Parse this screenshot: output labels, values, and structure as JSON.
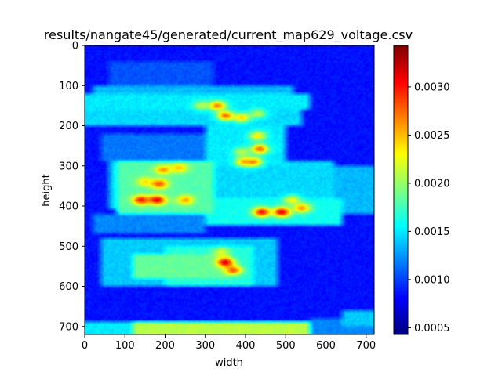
{
  "chart_data": {
    "type": "heatmap",
    "title": "results/nangate45/generated/current_map629_voltage.csv",
    "xlabel": "width",
    "ylabel": "height",
    "xlim": [
      0,
      720
    ],
    "ylim": [
      720,
      0
    ],
    "x_ticks": [
      0,
      100,
      200,
      300,
      400,
      500,
      600,
      700
    ],
    "y_ticks": [
      0,
      100,
      200,
      300,
      400,
      500,
      600,
      700
    ],
    "colorbar": {
      "min": 0.00043,
      "max": 0.00343,
      "ticks": [
        0.0005,
        0.001,
        0.0015,
        0.002,
        0.0025,
        0.003
      ],
      "tick_labels": [
        "0.0005",
        "0.0010",
        "0.0015",
        "0.0020",
        "0.0025",
        "0.0030"
      ],
      "colormap": "jet"
    },
    "background_level": 0.00085,
    "bands": [
      {
        "x": [
          0,
          720
        ],
        "y": [
          0,
          20
        ],
        "value": 0.00075
      },
      {
        "x": [
          60,
          320
        ],
        "y": [
          40,
          100
        ],
        "value": 0.00105
      },
      {
        "x": [
          20,
          520
        ],
        "y": [
          100,
          120
        ],
        "value": 0.00135
      },
      {
        "x": [
          0,
          560
        ],
        "y": [
          120,
          160
        ],
        "value": 0.0015
      },
      {
        "x": [
          0,
          540
        ],
        "y": [
          160,
          200
        ],
        "value": 0.00145
      },
      {
        "x": [
          300,
          500
        ],
        "y": [
          200,
          300
        ],
        "value": 0.0015
      },
      {
        "x": [
          40,
          300
        ],
        "y": [
          220,
          290
        ],
        "value": 0.00115
      },
      {
        "x": [
          60,
          620
        ],
        "y": [
          290,
          410
        ],
        "value": 0.00145
      },
      {
        "x": [
          80,
          320
        ],
        "y": [
          290,
          420
        ],
        "value": 0.0018
      },
      {
        "x": [
          420,
          720
        ],
        "y": [
          300,
          420
        ],
        "value": 0.00135
      },
      {
        "x": [
          300,
          640
        ],
        "y": [
          380,
          450
        ],
        "value": 0.0016
      },
      {
        "x": [
          20,
          300
        ],
        "y": [
          420,
          470
        ],
        "value": 0.0012
      },
      {
        "x": [
          40,
          480
        ],
        "y": [
          480,
          600
        ],
        "value": 0.0014
      },
      {
        "x": [
          200,
          420
        ],
        "y": [
          500,
          600
        ],
        "value": 0.00165
      },
      {
        "x": [
          120,
          360
        ],
        "y": [
          520,
          580
        ],
        "value": 0.00185
      },
      {
        "x": [
          120,
          560
        ],
        "y": [
          690,
          720
        ],
        "value": 0.0021
      },
      {
        "x": [
          0,
          120
        ],
        "y": [
          690,
          720
        ],
        "value": 0.0015
      },
      {
        "x": [
          560,
          720
        ],
        "y": [
          680,
          720
        ],
        "value": 0.0012
      },
      {
        "x": [
          640,
          720
        ],
        "y": [
          660,
          700
        ],
        "value": 0.0014
      }
    ],
    "hotspots": [
      {
        "x": 180,
        "y": 385,
        "value": 0.00335
      },
      {
        "x": 140,
        "y": 385,
        "value": 0.0032
      },
      {
        "x": 250,
        "y": 385,
        "value": 0.0027
      },
      {
        "x": 185,
        "y": 345,
        "value": 0.003
      },
      {
        "x": 150,
        "y": 340,
        "value": 0.0025
      },
      {
        "x": 195,
        "y": 310,
        "value": 0.0027
      },
      {
        "x": 235,
        "y": 305,
        "value": 0.0026
      },
      {
        "x": 490,
        "y": 415,
        "value": 0.0034
      },
      {
        "x": 440,
        "y": 415,
        "value": 0.0033
      },
      {
        "x": 540,
        "y": 405,
        "value": 0.0028
      },
      {
        "x": 515,
        "y": 385,
        "value": 0.0024
      },
      {
        "x": 350,
        "y": 540,
        "value": 0.0034
      },
      {
        "x": 370,
        "y": 560,
        "value": 0.003
      },
      {
        "x": 340,
        "y": 515,
        "value": 0.0023
      },
      {
        "x": 330,
        "y": 150,
        "value": 0.0029
      },
      {
        "x": 350,
        "y": 175,
        "value": 0.003
      },
      {
        "x": 390,
        "y": 180,
        "value": 0.0026
      },
      {
        "x": 430,
        "y": 170,
        "value": 0.0022
      },
      {
        "x": 430,
        "y": 225,
        "value": 0.0025
      },
      {
        "x": 435,
        "y": 258,
        "value": 0.003
      },
      {
        "x": 390,
        "y": 265,
        "value": 0.0022
      },
      {
        "x": 420,
        "y": 290,
        "value": 0.0028
      },
      {
        "x": 395,
        "y": 290,
        "value": 0.0027
      },
      {
        "x": 290,
        "y": 150,
        "value": 0.0022
      }
    ]
  }
}
